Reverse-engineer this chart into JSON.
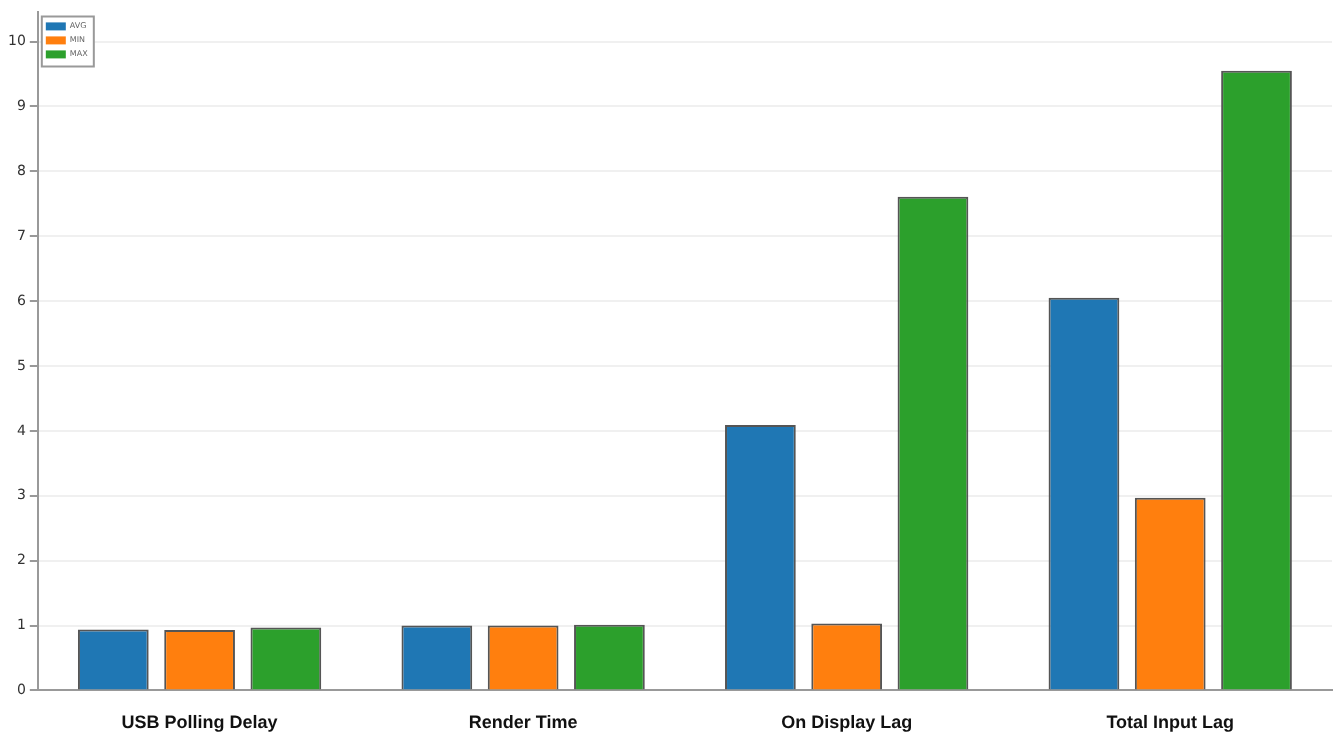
{
  "chart_data": {
    "type": "bar",
    "categories": [
      "USB Polling Delay",
      "Render Time",
      "On Display Lag",
      "Total Input Lag"
    ],
    "series": [
      {
        "name": "AVG",
        "color": "#1f77b4",
        "values": [
          0.94,
          1.0,
          4.09,
          6.05
        ]
      },
      {
        "name": "MIN",
        "color": "#ff7f0e",
        "values": [
          0.93,
          1.0,
          1.03,
          2.97
        ]
      },
      {
        "name": "MAX",
        "color": "#2ca02c",
        "values": [
          0.97,
          1.01,
          7.61,
          9.55
        ]
      }
    ],
    "ylim": [
      0,
      10.45
    ],
    "yticks": [
      0,
      1,
      2,
      3,
      4,
      5,
      6,
      7,
      8,
      9,
      10
    ],
    "grid": "y",
    "legend": "top left"
  }
}
